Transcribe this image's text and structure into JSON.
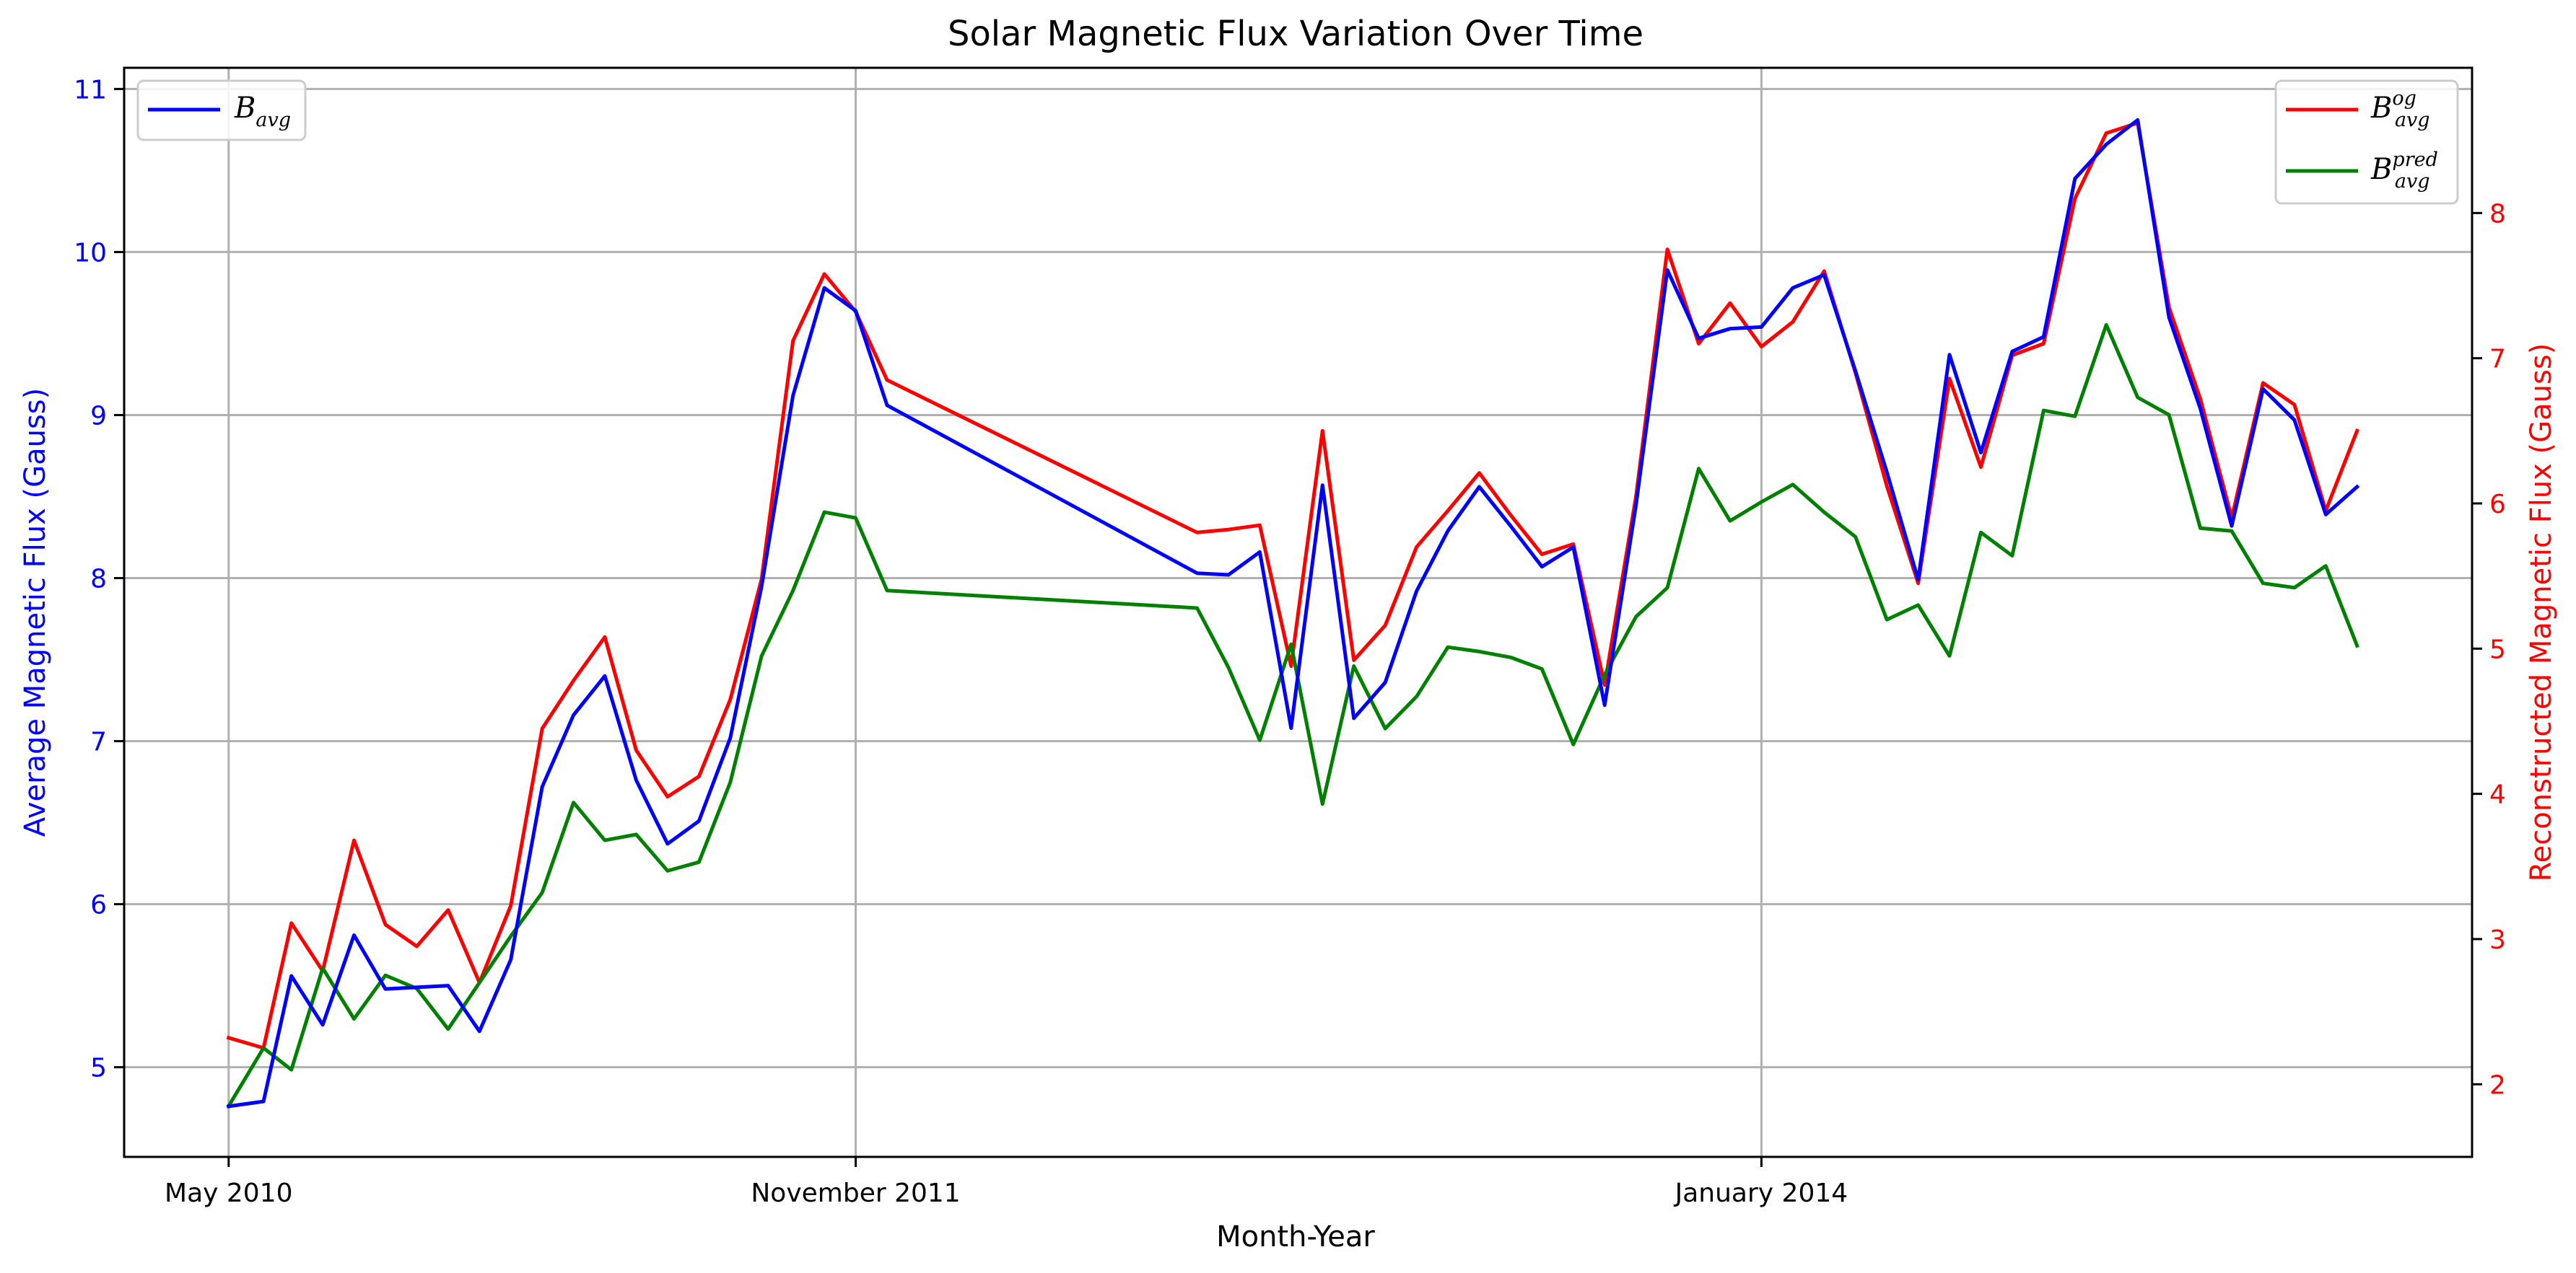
{
  "chart_data": {
    "type": "line",
    "title": "Solar Magnetic Flux Variation Over Time",
    "xlabel": "Month-Year",
    "ylabel_left": "Average Magnetic Flux (Gauss)",
    "ylabel_right": "Reconstructed Magnetic Flux (Gauss)",
    "x_ticks": [
      "May 2010",
      "November 2011",
      "January 2014"
    ],
    "x_tick_positions": [
      0,
      18,
      44
    ],
    "xlim": [
      -3,
      64.4
    ],
    "ylim_left": [
      4.45,
      11.13
    ],
    "ylim_right": [
      1.5,
      9.0
    ],
    "yticks_left": [
      5,
      6,
      7,
      8,
      9,
      10,
      11
    ],
    "yticks_right": [
      2,
      3,
      4,
      5,
      6,
      7,
      8
    ],
    "grid": true,
    "legend_left": {
      "placement": "top-left"
    },
    "legend_right": {
      "placement": "top-right"
    },
    "x": [
      0,
      1,
      1.8,
      2.7,
      3.6,
      4.5,
      5.4,
      6.3,
      7.2,
      8.1,
      9,
      9.9,
      10.8,
      11.7,
      12.6,
      13.5,
      14.4,
      15.3,
      16.2,
      17.1,
      18,
      18.9,
      27.8,
      28.7,
      29.6,
      30.5,
      31.4,
      32.3,
      33.2,
      34.1,
      35,
      35.9,
      36.8,
      37.7,
      38.6,
      39.5,
      40.4,
      41.3,
      42.2,
      43.1,
      44,
      44.9,
      45.8,
      46.7,
      47.6,
      48.5,
      49.4,
      50.3,
      51.2,
      52.1,
      53,
      53.9,
      54.8,
      55.7,
      56.6,
      57.5,
      58.4,
      59.3,
      60.2,
      61.1
    ],
    "series": [
      {
        "name": "B_avg",
        "label_base": "B",
        "label_sub": "avg",
        "label_sup": "",
        "axis": "left",
        "color": "#0000ff",
        "values": [
          4.76,
          4.79,
          5.56,
          5.26,
          5.81,
          5.48,
          5.49,
          5.5,
          5.22,
          5.66,
          6.72,
          7.16,
          7.4,
          6.76,
          6.37,
          6.51,
          7.02,
          7.95,
          9.12,
          9.78,
          9.64,
          9.06,
          8.03,
          8.02,
          8.16,
          7.08,
          8.57,
          7.14,
          7.36,
          7.92,
          8.29,
          8.56,
          8.32,
          8.07,
          8.19,
          7.22,
          8.45,
          9.89,
          9.47,
          9.53,
          9.54,
          9.78,
          9.86,
          9.27,
          8.65,
          7.99,
          9.37,
          8.77,
          9.39,
          9.48,
          10.45,
          10.66,
          10.81,
          9.6,
          9.04,
          8.32,
          9.16,
          8.97,
          8.39,
          8.56
        ]
      },
      {
        "name": "B_avg^og",
        "label_base": "B",
        "label_sub": "avg",
        "label_sup": "og",
        "axis": "right",
        "color": "#ff0000",
        "values": [
          2.32,
          2.25,
          3.11,
          2.78,
          3.68,
          3.1,
          2.95,
          3.2,
          2.7,
          3.23,
          4.45,
          4.78,
          5.08,
          4.3,
          3.98,
          4.12,
          4.65,
          5.48,
          7.12,
          7.58,
          7.32,
          6.85,
          5.8,
          5.82,
          5.85,
          4.88,
          6.5,
          4.92,
          5.16,
          5.7,
          5.95,
          6.21,
          5.92,
          5.65,
          5.72,
          4.75,
          6.05,
          7.75,
          7.1,
          7.38,
          7.08,
          7.25,
          7.6,
          6.9,
          6.12,
          5.45,
          6.86,
          6.25,
          7.02,
          7.1,
          8.1,
          8.55,
          8.62,
          7.35,
          6.72,
          5.9,
          6.83,
          6.68,
          5.95,
          6.5
        ]
      },
      {
        "name": "B_avg^pred",
        "label_base": "B",
        "label_sub": "avg",
        "label_sup": "pred",
        "axis": "right",
        "color": "#008000",
        "values": [
          1.85,
          2.25,
          2.1,
          2.8,
          2.45,
          2.75,
          2.66,
          2.38,
          2.7,
          3.02,
          3.32,
          3.94,
          3.68,
          3.72,
          3.47,
          3.53,
          4.08,
          4.95,
          5.4,
          5.94,
          5.9,
          5.4,
          5.28,
          4.87,
          4.37,
          5.03,
          3.93,
          4.88,
          4.45,
          4.67,
          5.01,
          4.98,
          4.94,
          4.86,
          4.34,
          4.82,
          5.22,
          5.42,
          6.24,
          5.88,
          6.01,
          6.13,
          5.94,
          5.77,
          5.2,
          5.3,
          4.95,
          5.8,
          5.64,
          6.64,
          6.6,
          7.23,
          6.73,
          6.61,
          5.83,
          5.81,
          5.45,
          5.42,
          5.57,
          5.02
        ]
      }
    ]
  }
}
